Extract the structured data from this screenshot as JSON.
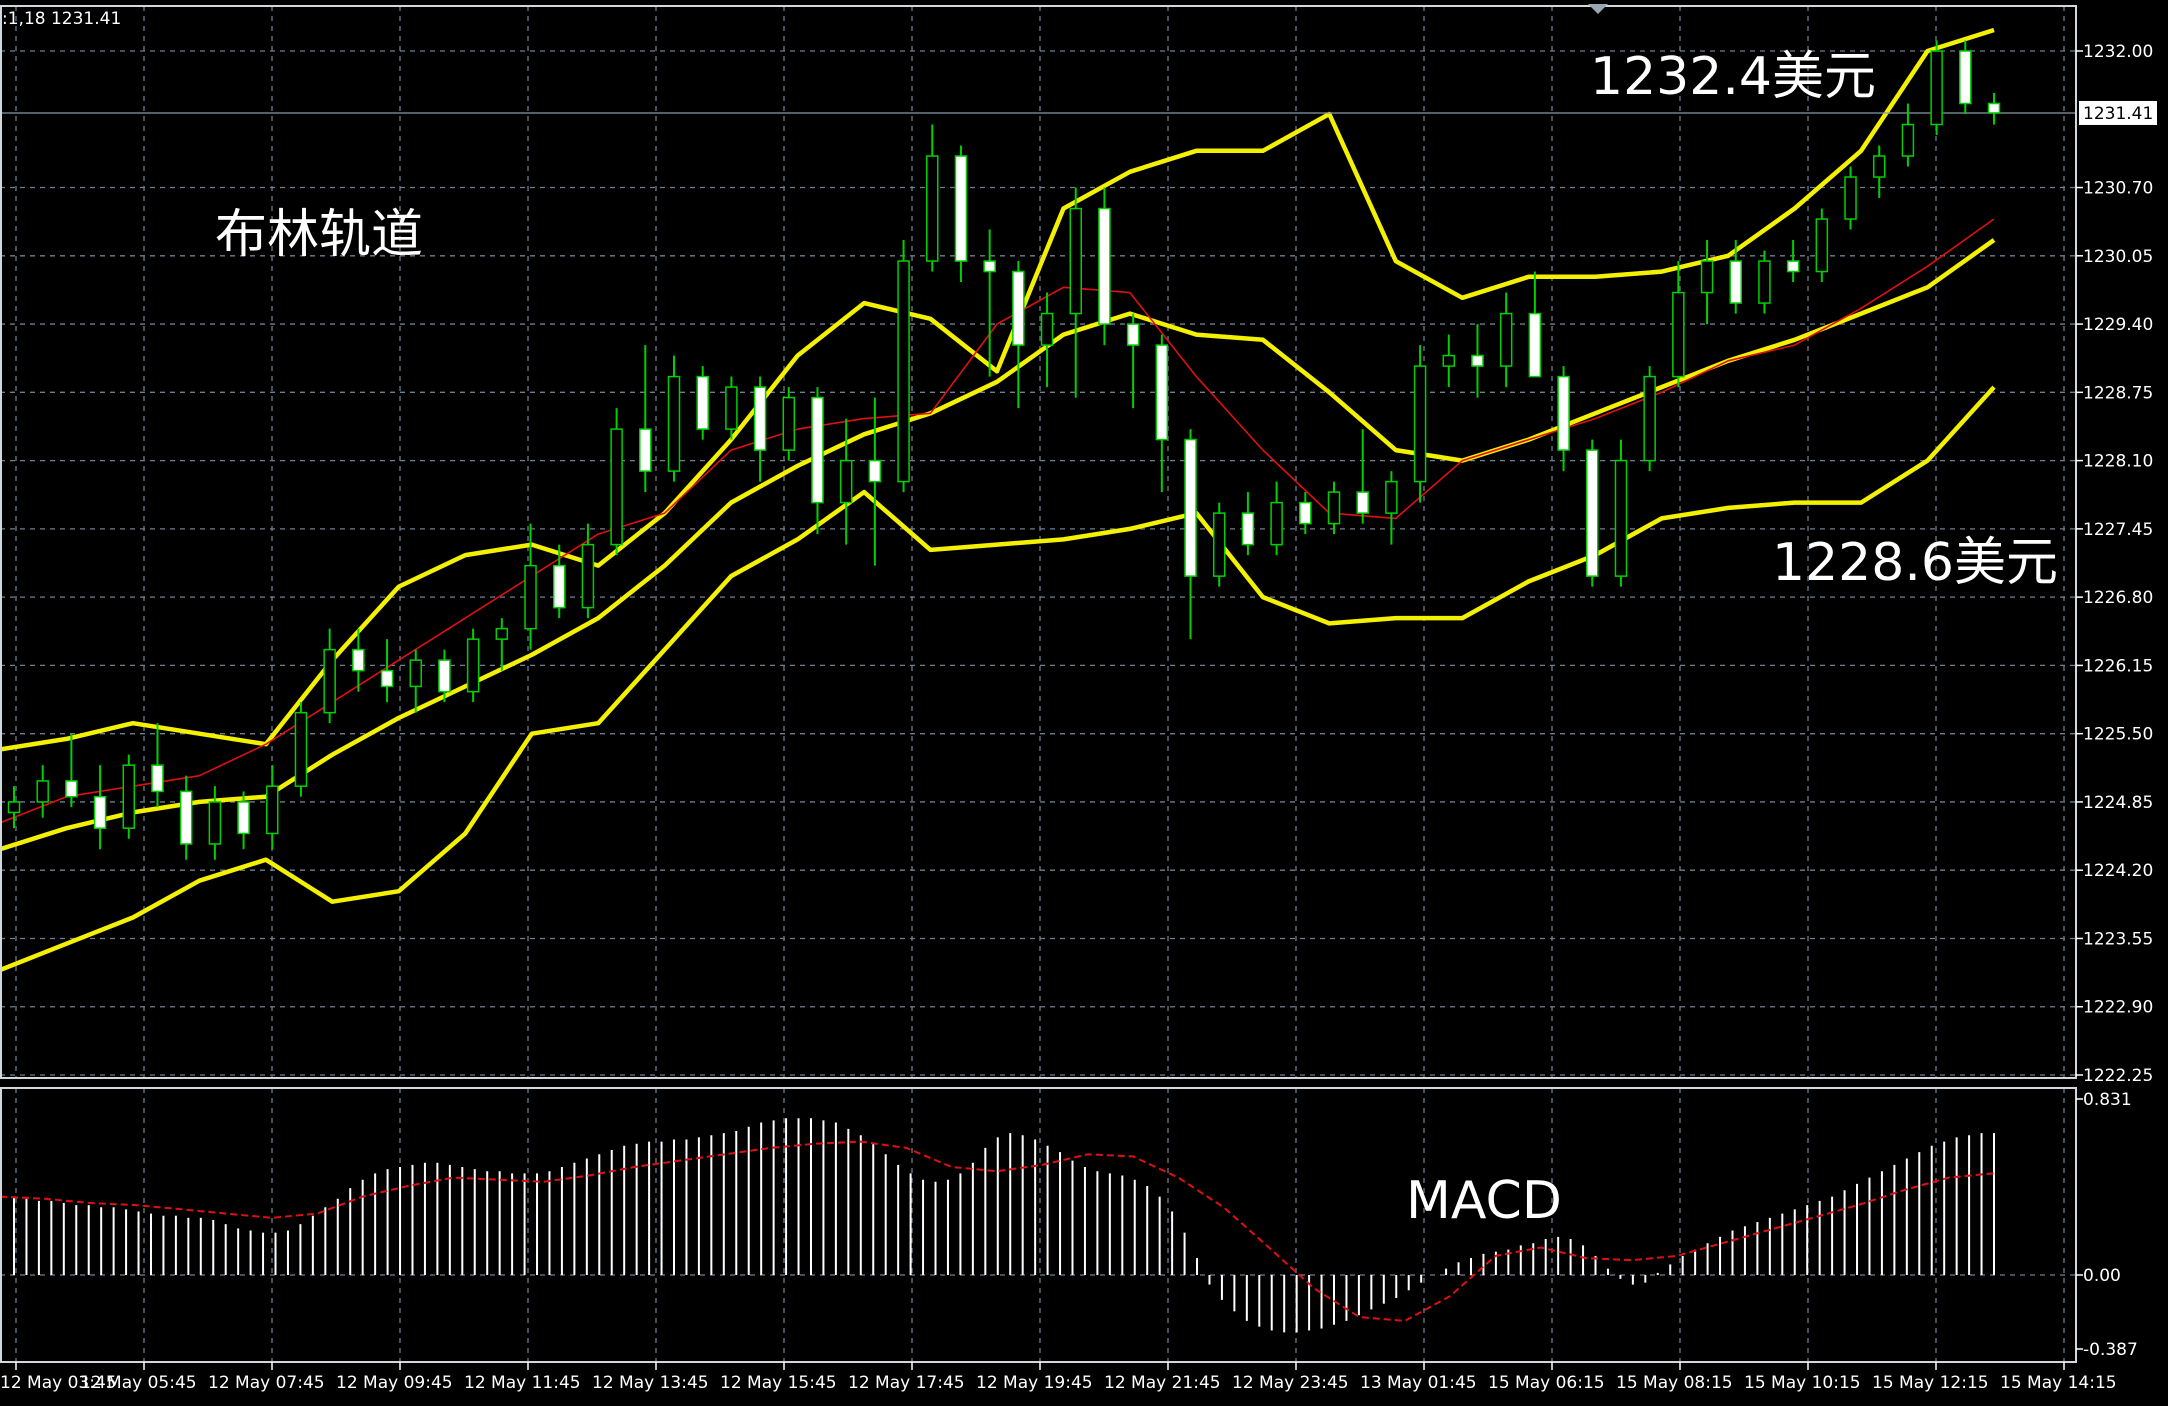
{
  "header": {
    "info": ":1,18 1231.41"
  },
  "colors": {
    "background": "#000000",
    "grid": "#6f7f8f",
    "bull_candle": "#00d000",
    "bear_candle_body": "#ffffff",
    "bollinger": "#f3f000",
    "moving_average": "#e01010",
    "macd_hist": "#ffffff",
    "macd_signal": "#e01010",
    "price_line": "#8a9aa8"
  },
  "chart_data": [
    {
      "type": "candlestick",
      "title": "",
      "annotations": [
        "布林轨道",
        "1232.4美元",
        "1228.6美元"
      ],
      "current_price": 1231.41,
      "current_price_label": "1231.41",
      "ylim": [
        1222.25,
        1232.0
      ],
      "ytick_labels": [
        "1232.00",
        "1230.70",
        "1230.05",
        "1229.40",
        "1228.75",
        "1228.10",
        "1227.45",
        "1226.80",
        "1226.15",
        "1225.50",
        "1224.85",
        "1224.20",
        "1223.55",
        "1222.90",
        "1222.25"
      ],
      "ytick_values": [
        1232.0,
        1230.7,
        1230.05,
        1229.4,
        1228.75,
        1228.1,
        1227.45,
        1226.8,
        1226.15,
        1225.5,
        1224.85,
        1224.2,
        1223.55,
        1222.9,
        1222.25
      ],
      "xtick_labels": [
        "12 May 03:45",
        "12 May 05:45",
        "12 May 07:45",
        "12 May 09:45",
        "12 May 11:45",
        "12 May 13:45",
        "12 May 15:45",
        "12 May 17:45",
        "12 May 19:45",
        "12 May 21:45",
        "12 May 23:45",
        "13 May 01:45",
        "15 May 06:15",
        "15 May 08:15",
        "15 May 10:15",
        "15 May 12:15",
        "15 May 14:15"
      ],
      "grid": true,
      "bollinger_upper": [
        1225.35,
        1225.45,
        1225.6,
        1225.5,
        1225.4,
        1226.2,
        1226.9,
        1227.2,
        1227.3,
        1227.1,
        1227.6,
        1228.3,
        1229.1,
        1229.6,
        1229.45,
        1228.95,
        1230.5,
        1230.85,
        1231.05,
        1231.05,
        1231.4,
        1230.0,
        1229.65,
        1229.85,
        1229.85,
        1229.9,
        1230.05,
        1230.5,
        1231.05,
        1232.0,
        1232.2
      ],
      "bollinger_middle": [
        1224.4,
        1224.6,
        1224.75,
        1224.85,
        1224.9,
        1225.3,
        1225.65,
        1225.95,
        1226.25,
        1226.6,
        1227.1,
        1227.7,
        1228.05,
        1228.35,
        1228.55,
        1228.85,
        1229.3,
        1229.5,
        1229.3,
        1229.25,
        1228.75,
        1228.2,
        1228.1,
        1228.3,
        1228.55,
        1228.8,
        1229.05,
        1229.25,
        1229.5,
        1229.75,
        1230.2
      ],
      "bollinger_lower": [
        1223.25,
        1223.5,
        1223.75,
        1224.1,
        1224.3,
        1223.9,
        1224.0,
        1224.55,
        1225.5,
        1225.6,
        1226.3,
        1227.0,
        1227.35,
        1227.8,
        1227.25,
        1227.3,
        1227.35,
        1227.45,
        1227.6,
        1226.8,
        1226.55,
        1226.6,
        1226.6,
        1226.95,
        1227.2,
        1227.55,
        1227.65,
        1227.7,
        1227.7,
        1228.1,
        1228.8
      ],
      "moving_average": [
        1224.65,
        1224.9,
        1225.0,
        1225.1,
        1225.4,
        1225.8,
        1226.2,
        1226.6,
        1227.0,
        1227.4,
        1227.6,
        1228.2,
        1228.4,
        1228.5,
        1228.55,
        1229.4,
        1229.75,
        1229.7,
        1228.9,
        1228.2,
        1227.6,
        1227.55,
        1228.1,
        1228.3,
        1228.5,
        1228.75,
        1229.05,
        1229.2,
        1229.55,
        1229.95,
        1230.4
      ],
      "candles": [
        {
          "o": 1224.75,
          "h": 1225.0,
          "l": 1224.6,
          "c": 1224.85
        },
        {
          "o": 1224.85,
          "h": 1225.2,
          "l": 1224.7,
          "c": 1225.05
        },
        {
          "o": 1225.05,
          "h": 1225.5,
          "l": 1224.8,
          "c": 1224.9
        },
        {
          "o": 1224.9,
          "h": 1225.2,
          "l": 1224.4,
          "c": 1224.6
        },
        {
          "o": 1224.6,
          "h": 1225.3,
          "l": 1224.5,
          "c": 1225.2
        },
        {
          "o": 1225.2,
          "h": 1225.6,
          "l": 1224.8,
          "c": 1224.95
        },
        {
          "o": 1224.95,
          "h": 1225.1,
          "l": 1224.3,
          "c": 1224.45
        },
        {
          "o": 1224.45,
          "h": 1225.0,
          "l": 1224.3,
          "c": 1224.85
        },
        {
          "o": 1224.85,
          "h": 1224.95,
          "l": 1224.4,
          "c": 1224.55
        },
        {
          "o": 1224.55,
          "h": 1225.2,
          "l": 1224.4,
          "c": 1225.0
        },
        {
          "o": 1225.0,
          "h": 1225.8,
          "l": 1224.9,
          "c": 1225.7
        },
        {
          "o": 1225.7,
          "h": 1226.5,
          "l": 1225.6,
          "c": 1226.3
        },
        {
          "o": 1226.3,
          "h": 1226.5,
          "l": 1225.9,
          "c": 1226.1
        },
        {
          "o": 1226.1,
          "h": 1226.4,
          "l": 1225.8,
          "c": 1225.95
        },
        {
          "o": 1225.95,
          "h": 1226.3,
          "l": 1225.7,
          "c": 1226.2
        },
        {
          "o": 1226.2,
          "h": 1226.3,
          "l": 1225.8,
          "c": 1225.9
        },
        {
          "o": 1225.9,
          "h": 1226.5,
          "l": 1225.8,
          "c": 1226.4
        },
        {
          "o": 1226.4,
          "h": 1226.6,
          "l": 1226.1,
          "c": 1226.5
        },
        {
          "o": 1226.5,
          "h": 1227.5,
          "l": 1226.3,
          "c": 1227.1
        },
        {
          "o": 1227.1,
          "h": 1227.3,
          "l": 1226.6,
          "c": 1226.7
        },
        {
          "o": 1226.7,
          "h": 1227.5,
          "l": 1226.6,
          "c": 1227.3
        },
        {
          "o": 1227.3,
          "h": 1228.6,
          "l": 1227.2,
          "c": 1228.4
        },
        {
          "o": 1228.4,
          "h": 1229.2,
          "l": 1227.8,
          "c": 1228.0
        },
        {
          "o": 1228.0,
          "h": 1229.1,
          "l": 1227.9,
          "c": 1228.9
        },
        {
          "o": 1228.9,
          "h": 1229.0,
          "l": 1228.3,
          "c": 1228.4
        },
        {
          "o": 1228.4,
          "h": 1228.9,
          "l": 1228.3,
          "c": 1228.8
        },
        {
          "o": 1228.8,
          "h": 1228.9,
          "l": 1227.9,
          "c": 1228.2
        },
        {
          "o": 1228.2,
          "h": 1228.8,
          "l": 1228.1,
          "c": 1228.7
        },
        {
          "o": 1228.7,
          "h": 1228.8,
          "l": 1227.4,
          "c": 1227.7
        },
        {
          "o": 1227.7,
          "h": 1228.5,
          "l": 1227.3,
          "c": 1228.1
        },
        {
          "o": 1228.1,
          "h": 1228.7,
          "l": 1227.1,
          "c": 1227.9
        },
        {
          "o": 1227.9,
          "h": 1230.2,
          "l": 1227.8,
          "c": 1230.0
        },
        {
          "o": 1230.0,
          "h": 1231.3,
          "l": 1229.9,
          "c": 1231.0
        },
        {
          "o": 1231.0,
          "h": 1231.1,
          "l": 1229.8,
          "c": 1230.0
        },
        {
          "o": 1230.0,
          "h": 1230.3,
          "l": 1228.9,
          "c": 1229.9
        },
        {
          "o": 1229.9,
          "h": 1230.0,
          "l": 1228.6,
          "c": 1229.2
        },
        {
          "o": 1229.2,
          "h": 1229.7,
          "l": 1228.8,
          "c": 1229.5
        },
        {
          "o": 1229.5,
          "h": 1230.7,
          "l": 1228.7,
          "c": 1230.5
        },
        {
          "o": 1230.5,
          "h": 1230.7,
          "l": 1229.2,
          "c": 1229.4
        },
        {
          "o": 1229.4,
          "h": 1229.5,
          "l": 1228.6,
          "c": 1229.2
        },
        {
          "o": 1229.2,
          "h": 1229.3,
          "l": 1227.8,
          "c": 1228.3
        },
        {
          "o": 1228.3,
          "h": 1228.4,
          "l": 1226.4,
          "c": 1227.0
        },
        {
          "o": 1227.0,
          "h": 1227.7,
          "l": 1226.9,
          "c": 1227.6
        },
        {
          "o": 1227.6,
          "h": 1227.8,
          "l": 1227.2,
          "c": 1227.3
        },
        {
          "o": 1227.3,
          "h": 1227.9,
          "l": 1227.2,
          "c": 1227.7
        },
        {
          "o": 1227.7,
          "h": 1227.8,
          "l": 1227.4,
          "c": 1227.5
        },
        {
          "o": 1227.5,
          "h": 1227.9,
          "l": 1227.4,
          "c": 1227.8
        },
        {
          "o": 1227.8,
          "h": 1228.4,
          "l": 1227.5,
          "c": 1227.6
        },
        {
          "o": 1227.6,
          "h": 1228.0,
          "l": 1227.3,
          "c": 1227.9
        },
        {
          "o": 1227.9,
          "h": 1229.2,
          "l": 1227.7,
          "c": 1229.0
        },
        {
          "o": 1229.0,
          "h": 1229.3,
          "l": 1228.8,
          "c": 1229.1
        },
        {
          "o": 1229.1,
          "h": 1229.4,
          "l": 1228.7,
          "c": 1229.0
        },
        {
          "o": 1229.0,
          "h": 1229.7,
          "l": 1228.8,
          "c": 1229.5
        },
        {
          "o": 1229.5,
          "h": 1229.9,
          "l": 1228.9,
          "c": 1228.9
        },
        {
          "o": 1228.9,
          "h": 1229.0,
          "l": 1228.0,
          "c": 1228.2
        },
        {
          "o": 1228.2,
          "h": 1228.3,
          "l": 1226.9,
          "c": 1227.0
        },
        {
          "o": 1227.0,
          "h": 1228.3,
          "l": 1226.9,
          "c": 1228.1
        },
        {
          "o": 1228.1,
          "h": 1229.0,
          "l": 1228.0,
          "c": 1228.9
        },
        {
          "o": 1228.9,
          "h": 1230.0,
          "l": 1228.8,
          "c": 1229.7
        },
        {
          "o": 1229.7,
          "h": 1230.2,
          "l": 1229.4,
          "c": 1230.0
        },
        {
          "o": 1230.0,
          "h": 1230.2,
          "l": 1229.5,
          "c": 1229.6
        },
        {
          "o": 1229.6,
          "h": 1230.1,
          "l": 1229.5,
          "c": 1230.0
        },
        {
          "o": 1230.0,
          "h": 1230.2,
          "l": 1229.8,
          "c": 1229.9
        },
        {
          "o": 1229.9,
          "h": 1230.5,
          "l": 1229.8,
          "c": 1230.4
        },
        {
          "o": 1230.4,
          "h": 1230.9,
          "l": 1230.3,
          "c": 1230.8
        },
        {
          "o": 1230.8,
          "h": 1231.1,
          "l": 1230.6,
          "c": 1231.0
        },
        {
          "o": 1231.0,
          "h": 1231.5,
          "l": 1230.9,
          "c": 1231.3
        },
        {
          "o": 1231.3,
          "h": 1232.1,
          "l": 1231.2,
          "c": 1232.0
        },
        {
          "o": 1232.0,
          "h": 1232.1,
          "l": 1231.4,
          "c": 1231.5
        },
        {
          "o": 1231.5,
          "h": 1231.6,
          "l": 1231.3,
          "c": 1231.41
        }
      ]
    },
    {
      "type": "bar",
      "title": "MACD",
      "ylim": [
        -0.387,
        0.831
      ],
      "ytick_labels": [
        "0.831",
        "0.00",
        "-0.387"
      ],
      "ytick_values": [
        0.831,
        0.0,
        -0.387
      ],
      "histogram": [
        0.37,
        0.36,
        0.35,
        0.35,
        0.34,
        0.33,
        0.33,
        0.32,
        0.32,
        0.31,
        0.3,
        0.29,
        0.28,
        0.28,
        0.27,
        0.27,
        0.26,
        0.24,
        0.22,
        0.21,
        0.2,
        0.2,
        0.21,
        0.24,
        0.28,
        0.32,
        0.36,
        0.41,
        0.45,
        0.48,
        0.5,
        0.51,
        0.52,
        0.53,
        0.53,
        0.52,
        0.51,
        0.5,
        0.49,
        0.49,
        0.48,
        0.48,
        0.48,
        0.49,
        0.51,
        0.53,
        0.55,
        0.57,
        0.59,
        0.61,
        0.62,
        0.63,
        0.63,
        0.64,
        0.64,
        0.65,
        0.66,
        0.67,
        0.68,
        0.7,
        0.72,
        0.73,
        0.74,
        0.74,
        0.74,
        0.73,
        0.72,
        0.69,
        0.66,
        0.62,
        0.57,
        0.52,
        0.48,
        0.45,
        0.44,
        0.45,
        0.48,
        0.53,
        0.6,
        0.65,
        0.67,
        0.66,
        0.64,
        0.61,
        0.58,
        0.54,
        0.51,
        0.49,
        0.48,
        0.47,
        0.45,
        0.42,
        0.37,
        0.3,
        0.2,
        0.08,
        -0.05,
        -0.13,
        -0.19,
        -0.24,
        -0.27,
        -0.29,
        -0.3,
        -0.3,
        -0.29,
        -0.28,
        -0.26,
        -0.24,
        -0.21,
        -0.18,
        -0.15,
        -0.12,
        -0.08,
        -0.04,
        0.0,
        0.03,
        0.06,
        0.08,
        0.1,
        0.11,
        0.12,
        0.14,
        0.15,
        0.17,
        0.18,
        0.17,
        0.14,
        0.09,
        0.03,
        -0.02,
        -0.05,
        -0.04,
        0.01,
        0.05,
        0.09,
        0.12,
        0.15,
        0.18,
        0.21,
        0.23,
        0.25,
        0.27,
        0.29,
        0.31,
        0.33,
        0.35,
        0.37,
        0.4,
        0.43,
        0.46,
        0.49,
        0.52,
        0.55,
        0.58,
        0.61,
        0.63,
        0.65,
        0.66,
        0.67,
        0.67
      ],
      "signal": [
        0.37,
        0.36,
        0.34,
        0.33,
        0.31,
        0.29,
        0.27,
        0.29,
        0.37,
        0.42,
        0.46,
        0.45,
        0.44,
        0.47,
        0.51,
        0.54,
        0.57,
        0.6,
        0.62,
        0.63,
        0.6,
        0.51,
        0.49,
        0.52,
        0.57,
        0.56,
        0.46,
        0.32,
        0.13,
        -0.07,
        -0.22,
        -0.24,
        -0.11,
        0.09,
        0.13,
        0.08,
        0.07,
        0.09,
        0.15,
        0.21,
        0.27,
        0.33,
        0.4,
        0.46,
        0.48
      ]
    }
  ]
}
